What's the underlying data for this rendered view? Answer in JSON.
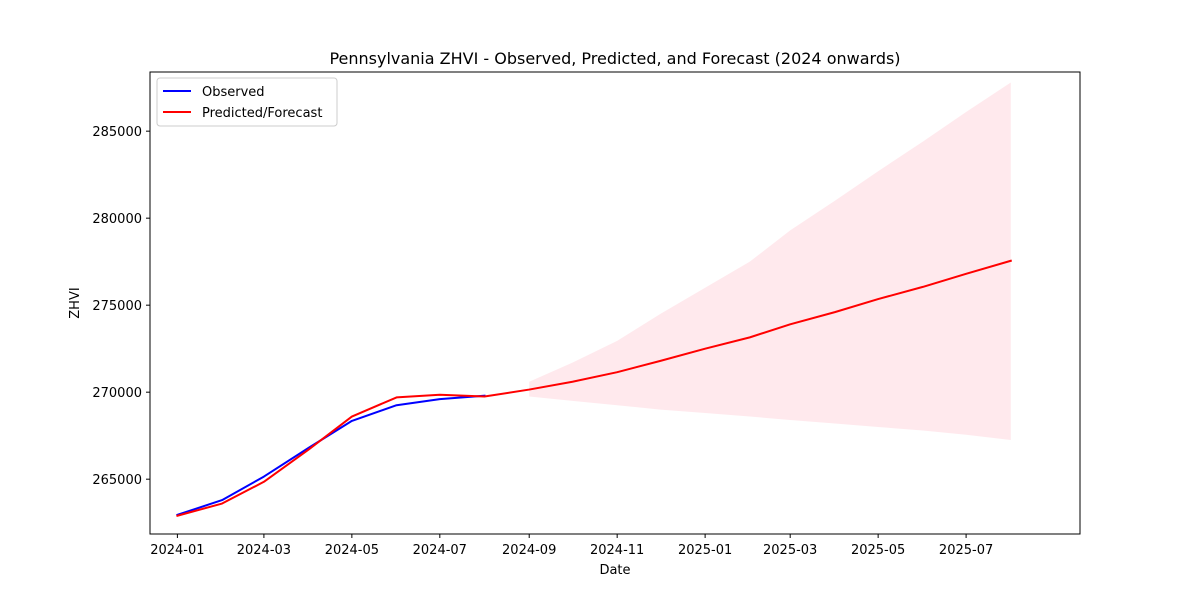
{
  "chart_data": {
    "type": "line",
    "title": "Pennsylvania ZHVI - Observed, Predicted, and Forecast (2024 onwards)",
    "xlabel": "Date",
    "ylabel": "ZHVI",
    "xlim": [
      "2023-12-13",
      "2025-09-18"
    ],
    "ylim": [
      261850,
      288400
    ],
    "x_ticks": [
      "2024-01",
      "2024-03",
      "2024-05",
      "2024-07",
      "2024-09",
      "2024-11",
      "2025-01",
      "2025-03",
      "2025-05",
      "2025-07"
    ],
    "y_ticks": [
      265000,
      270000,
      275000,
      280000,
      285000
    ],
    "legend": {
      "position": "top-left",
      "entries": [
        "Observed",
        "Predicted/Forecast"
      ]
    },
    "grid": false,
    "colors": {
      "observed": "#0000ff",
      "predicted": "#ff0000",
      "confidence_band": "#ffc0cb"
    },
    "series": [
      {
        "name": "Observed",
        "x": [
          "2024-01-01",
          "2024-02-01",
          "2024-03-01",
          "2024-04-01",
          "2024-05-01",
          "2024-06-01",
          "2024-07-01",
          "2024-08-01"
        ],
        "values": [
          262950,
          263800,
          265150,
          266800,
          268350,
          269250,
          269600,
          269800
        ]
      },
      {
        "name": "Predicted/Forecast",
        "x": [
          "2024-01-01",
          "2024-02-01",
          "2024-03-01",
          "2024-04-01",
          "2024-05-01",
          "2024-06-01",
          "2024-07-01",
          "2024-08-01",
          "2024-09-01",
          "2024-10-01",
          "2024-11-01",
          "2024-12-01",
          "2025-01-01",
          "2025-02-01",
          "2025-03-01",
          "2025-04-01",
          "2025-05-01",
          "2025-06-01",
          "2025-07-01",
          "2025-08-01"
        ],
        "values": [
          262900,
          263600,
          264850,
          266700,
          268600,
          269700,
          269850,
          269750,
          270150,
          270600,
          271150,
          271800,
          272500,
          273150,
          273900,
          274600,
          275350,
          276050,
          276800,
          277550
        ]
      }
    ],
    "confidence_band": {
      "x": [
        "2024-09-01",
        "2024-10-01",
        "2024-11-01",
        "2024-12-01",
        "2025-01-01",
        "2025-02-01",
        "2025-03-01",
        "2025-04-01",
        "2025-05-01",
        "2025-06-01",
        "2025-07-01",
        "2025-08-01"
      ],
      "lower": [
        269750,
        269500,
        269250,
        269000,
        268800,
        268600,
        268400,
        268200,
        268000,
        267800,
        267550,
        267250
      ],
      "upper": [
        270600,
        271700,
        272950,
        274500,
        276000,
        277500,
        279300,
        281000,
        282700,
        284400,
        286100,
        287800
      ]
    }
  }
}
